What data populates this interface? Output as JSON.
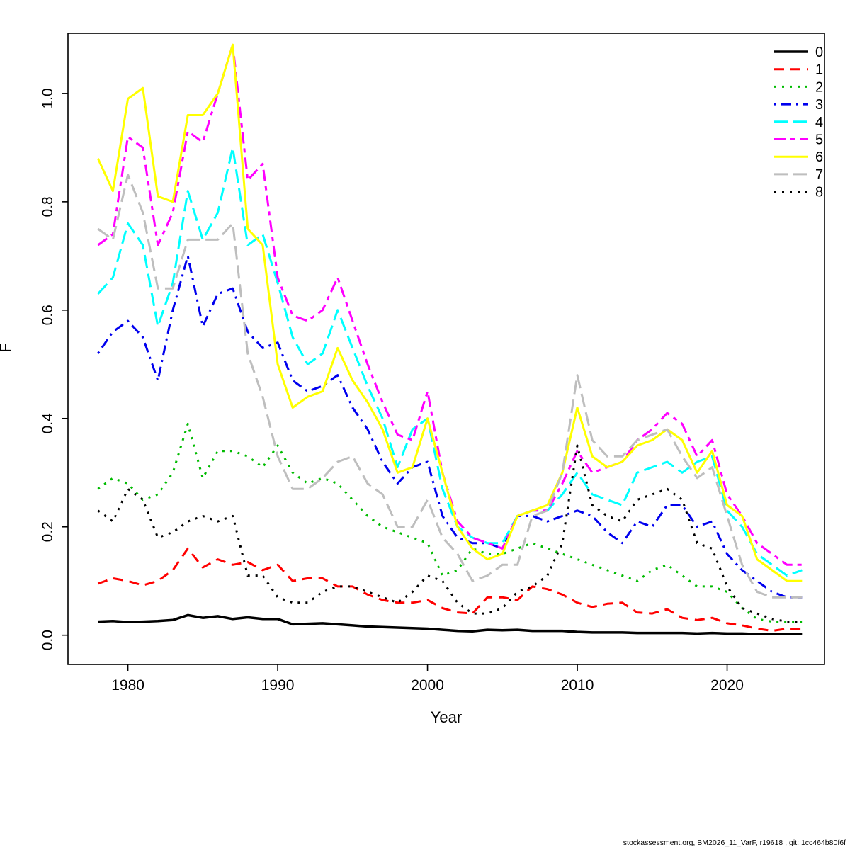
{
  "figure": {
    "xlabel": "Year",
    "ylabel": "F",
    "footer": "stockassessment.org, BM2026_11_VarF, r19618 , git: 1cc464b80f6f"
  },
  "chart_data": {
    "type": "line",
    "title": "",
    "xlabel": "Year",
    "ylabel": "F",
    "xlim": [
      1976.0,
      2026.5
    ],
    "ylim": [
      -0.054,
      1.111
    ],
    "xticks": [
      1980,
      1990,
      2000,
      2010,
      2020
    ],
    "yticks": [
      "0.0",
      "0.2",
      "0.4",
      "0.6",
      "0.8",
      "1.0"
    ],
    "grid": false,
    "legend_position": "top-right",
    "x": [
      1978,
      1979,
      1980,
      1981,
      1982,
      1983,
      1984,
      1985,
      1986,
      1987,
      1988,
      1989,
      1990,
      1991,
      1992,
      1993,
      1994,
      1995,
      1996,
      1997,
      1998,
      1999,
      2000,
      2001,
      2002,
      2003,
      2004,
      2005,
      2006,
      2007,
      2008,
      2009,
      2010,
      2011,
      2012,
      2013,
      2014,
      2015,
      2016,
      2017,
      2018,
      2019,
      2020,
      2021,
      2022,
      2023,
      2024,
      2025
    ],
    "series": [
      {
        "name": "0",
        "color": "#000000",
        "linestyle": "solid",
        "linewidth": 3.5,
        "values": [
          0.025,
          0.026,
          0.024,
          0.025,
          0.026,
          0.028,
          0.037,
          0.032,
          0.035,
          0.03,
          0.033,
          0.03,
          0.03,
          0.02,
          0.021,
          0.022,
          0.02,
          0.018,
          0.016,
          0.015,
          0.014,
          0.013,
          0.012,
          0.01,
          0.008,
          0.007,
          0.01,
          0.009,
          0.01,
          0.008,
          0.008,
          0.008,
          0.006,
          0.005,
          0.005,
          0.005,
          0.004,
          0.004,
          0.004,
          0.004,
          0.003,
          0.004,
          0.003,
          0.003,
          0.002,
          0.002,
          0.002,
          0.002
        ]
      },
      {
        "name": "1",
        "color": "#ff0000",
        "linestyle": "dashed",
        "linewidth": 3,
        "values": [
          0.095,
          0.105,
          0.1,
          0.092,
          0.1,
          0.12,
          0.16,
          0.125,
          0.14,
          0.13,
          0.135,
          0.12,
          0.13,
          0.1,
          0.105,
          0.105,
          0.09,
          0.09,
          0.075,
          0.065,
          0.06,
          0.06,
          0.065,
          0.05,
          0.042,
          0.04,
          0.07,
          0.07,
          0.065,
          0.09,
          0.085,
          0.075,
          0.06,
          0.052,
          0.058,
          0.06,
          0.042,
          0.04,
          0.048,
          0.032,
          0.028,
          0.032,
          0.022,
          0.018,
          0.012,
          0.008,
          0.012,
          0.012
        ]
      },
      {
        "name": "2",
        "color": "#00bb00",
        "linestyle": "dotted",
        "linewidth": 3,
        "values": [
          0.27,
          0.29,
          0.28,
          0.25,
          0.26,
          0.3,
          0.39,
          0.29,
          0.34,
          0.34,
          0.33,
          0.31,
          0.35,
          0.3,
          0.28,
          0.29,
          0.28,
          0.25,
          0.22,
          0.2,
          0.19,
          0.18,
          0.17,
          0.11,
          0.12,
          0.16,
          0.15,
          0.15,
          0.16,
          0.17,
          0.16,
          0.15,
          0.14,
          0.13,
          0.12,
          0.11,
          0.1,
          0.12,
          0.13,
          0.11,
          0.09,
          0.09,
          0.08,
          0.05,
          0.03,
          0.025,
          0.025,
          0.025
        ]
      },
      {
        "name": "3",
        "color": "#0000ee",
        "linestyle": "dotdash",
        "linewidth": 3,
        "values": [
          0.52,
          0.56,
          0.58,
          0.55,
          0.47,
          0.6,
          0.7,
          0.57,
          0.63,
          0.64,
          0.56,
          0.53,
          0.54,
          0.47,
          0.45,
          0.46,
          0.48,
          0.42,
          0.38,
          0.32,
          0.28,
          0.31,
          0.32,
          0.22,
          0.18,
          0.17,
          0.17,
          0.16,
          0.22,
          0.22,
          0.21,
          0.22,
          0.23,
          0.22,
          0.19,
          0.17,
          0.21,
          0.2,
          0.24,
          0.24,
          0.2,
          0.21,
          0.15,
          0.12,
          0.1,
          0.08,
          0.07,
          0.07
        ]
      },
      {
        "name": "4",
        "color": "#00ffff",
        "linestyle": "longdash",
        "linewidth": 3,
        "values": [
          0.63,
          0.66,
          0.76,
          0.72,
          0.57,
          0.65,
          0.82,
          0.73,
          0.78,
          0.9,
          0.72,
          0.74,
          0.65,
          0.55,
          0.5,
          0.52,
          0.6,
          0.53,
          0.46,
          0.4,
          0.31,
          0.38,
          0.4,
          0.27,
          0.2,
          0.18,
          0.17,
          0.17,
          0.22,
          0.23,
          0.23,
          0.26,
          0.3,
          0.26,
          0.25,
          0.24,
          0.3,
          0.31,
          0.32,
          0.3,
          0.32,
          0.33,
          0.23,
          0.2,
          0.15,
          0.13,
          0.11,
          0.12
        ]
      },
      {
        "name": "5",
        "color": "#ff00ff",
        "linestyle": "twodash",
        "linewidth": 3,
        "values": [
          0.72,
          0.74,
          0.92,
          0.9,
          0.72,
          0.78,
          0.93,
          0.91,
          1.0,
          1.09,
          0.84,
          0.87,
          0.66,
          0.59,
          0.58,
          0.6,
          0.66,
          0.58,
          0.5,
          0.43,
          0.37,
          0.36,
          0.45,
          0.3,
          0.21,
          0.18,
          0.17,
          0.16,
          0.22,
          0.23,
          0.23,
          0.28,
          0.34,
          0.3,
          0.31,
          0.32,
          0.36,
          0.38,
          0.41,
          0.39,
          0.33,
          0.36,
          0.26,
          0.22,
          0.17,
          0.15,
          0.13,
          0.13
        ]
      },
      {
        "name": "6",
        "color": "#ffff00",
        "linestyle": "solid",
        "linewidth": 3,
        "values": [
          0.88,
          0.82,
          0.99,
          1.01,
          0.81,
          0.8,
          0.96,
          0.96,
          1.0,
          1.09,
          0.75,
          0.72,
          0.5,
          0.42,
          0.44,
          0.45,
          0.53,
          0.47,
          0.43,
          0.38,
          0.3,
          0.31,
          0.4,
          0.3,
          0.2,
          0.16,
          0.14,
          0.15,
          0.22,
          0.23,
          0.24,
          0.3,
          0.42,
          0.33,
          0.31,
          0.32,
          0.35,
          0.36,
          0.38,
          0.36,
          0.3,
          0.34,
          0.24,
          0.22,
          0.14,
          0.12,
          0.1,
          0.1
        ]
      },
      {
        "name": "7",
        "color": "#bebebe",
        "linestyle": "longdash",
        "linewidth": 3,
        "values": [
          0.75,
          0.73,
          0.85,
          0.78,
          0.64,
          0.64,
          0.73,
          0.73,
          0.73,
          0.76,
          0.52,
          0.44,
          0.33,
          0.27,
          0.27,
          0.29,
          0.32,
          0.33,
          0.28,
          0.26,
          0.2,
          0.2,
          0.25,
          0.18,
          0.15,
          0.1,
          0.11,
          0.13,
          0.13,
          0.22,
          0.23,
          0.3,
          0.48,
          0.36,
          0.33,
          0.33,
          0.36,
          0.37,
          0.38,
          0.33,
          0.29,
          0.31,
          0.22,
          0.13,
          0.08,
          0.07,
          0.07,
          0.07
        ]
      },
      {
        "name": "8",
        "color": "#000000",
        "linestyle": "dotted",
        "linewidth": 3,
        "values": [
          0.23,
          0.21,
          0.27,
          0.25,
          0.18,
          0.19,
          0.21,
          0.22,
          0.21,
          0.22,
          0.11,
          0.11,
          0.07,
          0.06,
          0.06,
          0.08,
          0.09,
          0.09,
          0.08,
          0.07,
          0.06,
          0.08,
          0.11,
          0.1,
          0.06,
          0.04,
          0.04,
          0.05,
          0.08,
          0.09,
          0.11,
          0.17,
          0.35,
          0.24,
          0.22,
          0.21,
          0.25,
          0.26,
          0.27,
          0.25,
          0.17,
          0.16,
          0.09,
          0.05,
          0.04,
          0.03,
          0.025,
          0.025
        ]
      }
    ]
  }
}
